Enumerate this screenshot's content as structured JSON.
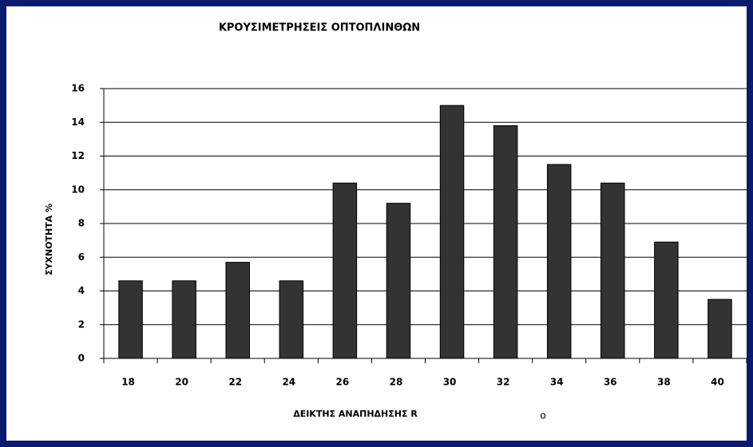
{
  "chart_data": {
    "type": "bar",
    "title": "ΚΡΟΥΣΙΜΕΤΡΗΣΕΙΣ ΟΠΤΟΠΛΙΝΘΩΝ",
    "x_label": "ΔΕΙΚΤΗΣ ΑΝΑΠΗΔΗΣΗΣ R",
    "x_label_note": "o",
    "y_label": "ΣΥΧΝΟΤΗΤΑ %",
    "categories": [
      "18",
      "20",
      "22",
      "24",
      "26",
      "28",
      "30",
      "32",
      "34",
      "36",
      "38",
      "40"
    ],
    "values": [
      4.6,
      4.6,
      5.7,
      4.6,
      10.4,
      9.2,
      15,
      13.8,
      11.5,
      10.4,
      6.9,
      3.5
    ],
    "color": "#333333",
    "ylim": [
      0,
      16
    ],
    "yticks": [
      0,
      2,
      4,
      6,
      8,
      10,
      12,
      14,
      16
    ],
    "grid": true
  }
}
